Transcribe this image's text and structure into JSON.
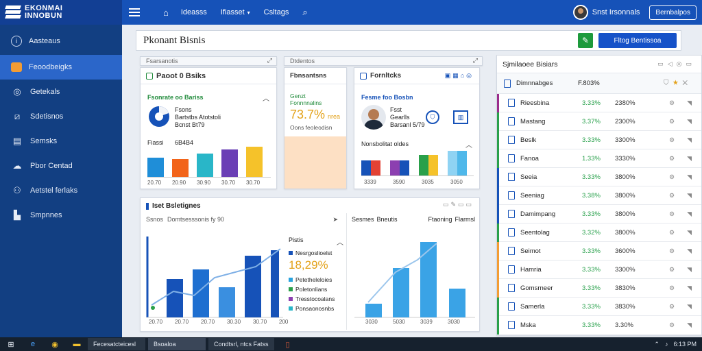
{
  "app": {
    "logo_line1": "EKONMAI",
    "logo_line2": "INNOBUN"
  },
  "topbar": {
    "nav": [
      "Ideasss",
      "Ifiasset",
      "Csltags"
    ],
    "user_name": "Snst Irsonnals",
    "button_label": "Bernbalpos"
  },
  "sidebar": {
    "items": [
      {
        "label": "Aasteaus",
        "icon": "info-icon"
      },
      {
        "label": "Feoodbeigks",
        "icon": "folder-icon"
      },
      {
        "label": "Getekals",
        "icon": "globe-icon"
      },
      {
        "label": "Sdetisnos",
        "icon": "chart-icon"
      },
      {
        "label": "Semsks",
        "icon": "table-icon"
      },
      {
        "label": "Pbor Centad",
        "icon": "cloud-icon"
      },
      {
        "label": "Aetstel ferlaks",
        "icon": "people-icon"
      },
      {
        "label": "Smpnnes",
        "icon": "book-icon"
      }
    ]
  },
  "page": {
    "title": "Pkonant Bisnis",
    "primary_button": "Fltog Bentissoa"
  },
  "panel1": {
    "tab": "Fsarsanotis",
    "title": "Paoot 0 Bsiks",
    "subtitle": "Fsonrate oo Bariss",
    "info_title": "Fsons",
    "info_line1": "Bartstbs Atotstoli",
    "info_line2": "Bcnst Bt79",
    "bars_label": "Fiassi",
    "bars_value": "6B4B4",
    "x_labels": [
      "20.70",
      "20.90",
      "30.90",
      "30.70",
      "30.70"
    ],
    "colors": [
      "#1f8ed8",
      "#f2641a",
      "#29b6c8",
      "#6a3fb5",
      "#f5c22a"
    ]
  },
  "panel2": {
    "tab": "Dtdentos",
    "title": "Fbnsantsns",
    "sub1": "Genzt",
    "sub2": "Fonnnnalins",
    "big_value": "73.7%",
    "big_suffix": "nrea",
    "caption": "Oons feoleodisn"
  },
  "panel3": {
    "title": "Fornltcks",
    "subtitle": "Fesme foo Bosbn",
    "person_name": "Fsst",
    "person_role": "Gearlls",
    "person_date": "Barsanl 5/79",
    "bars_label": "Nonsbolitat oldes",
    "x_labels": [
      "3339",
      "3590",
      "3035",
      "3050"
    ]
  },
  "bottom": {
    "title": "Iset Bsletignes",
    "filter_left": "Ssnos",
    "filter_right": "Domtsesssonis fy 90",
    "left_x_labels": [
      "20.70",
      "20.70",
      "20.70",
      "30.30",
      "30.70",
      "200"
    ],
    "legend_head": "Pistis",
    "legend_top": "Nesrgoslioelst",
    "big_value": "18,29%",
    "legend_items": [
      {
        "label": "Petetheleloies",
        "color": "#29a3de"
      },
      {
        "label": "Poletonlians",
        "color": "#2aa04a"
      },
      {
        "label": "Tresstocoalans",
        "color": "#8c3fb0"
      },
      {
        "label": "Ponsaonosnbs",
        "color": "#29b6c8"
      }
    ],
    "right_head_left": "Sesmes",
    "right_head_mid": "Bneutis",
    "right_head_right1": "Ftaoning",
    "right_head_right2": "Flarmsl",
    "right_x_labels": [
      "3030",
      "5030",
      "3039",
      "3030"
    ]
  },
  "right_panel": {
    "title": "Sjmilaoee Bisiars",
    "header_name": "Dimnnabges",
    "header_pct": "F.803%",
    "rows": [
      {
        "name": "Rieesbina",
        "pct": "3.33%",
        "val": "2380%",
        "bar": "#9b2c8c"
      },
      {
        "name": "Mastang",
        "pct": "3.37%",
        "val": "2300%",
        "bar": "#2aa04a"
      },
      {
        "name": "Beslk",
        "pct": "3.33%",
        "val": "3300%",
        "bar": "#2aa04a"
      },
      {
        "name": "Fanoa",
        "pct": "1.33%",
        "val": "3330%",
        "bar": "#2aa04a"
      },
      {
        "name": "Seeia",
        "pct": "3.33%",
        "val": "3800%",
        "bar": "#1652b8"
      },
      {
        "name": "Seeniag",
        "pct": "3.38%",
        "val": "3800%",
        "bar": "#1652b8"
      },
      {
        "name": "Damimpang",
        "pct": "3.33%",
        "val": "3800%",
        "bar": "#1652b8"
      },
      {
        "name": "Seentolag",
        "pct": "3.32%",
        "val": "3800%",
        "bar": "#2aa04a"
      },
      {
        "name": "Seimot",
        "pct": "3.33%",
        "val": "3600%",
        "bar": "#f39c34"
      },
      {
        "name": "Hamria",
        "pct": "3.33%",
        "val": "3300%",
        "bar": "#f39c34"
      },
      {
        "name": "Gomsrneer",
        "pct": "3.33%",
        "val": "3830%",
        "bar": "#f39c34"
      },
      {
        "name": "Samerla",
        "pct": "3.33%",
        "val": "3830%",
        "bar": "#2aa04a"
      },
      {
        "name": "Mska",
        "pct": "3.33%",
        "val": "3.30%",
        "bar": "#2aa04a"
      }
    ]
  },
  "taskbar": {
    "tasks": [
      "Fecesatcteicesl",
      "Bsoaloa",
      "Condtsrl, ntcs Fatss"
    ],
    "clock": "6:13 PM"
  }
}
